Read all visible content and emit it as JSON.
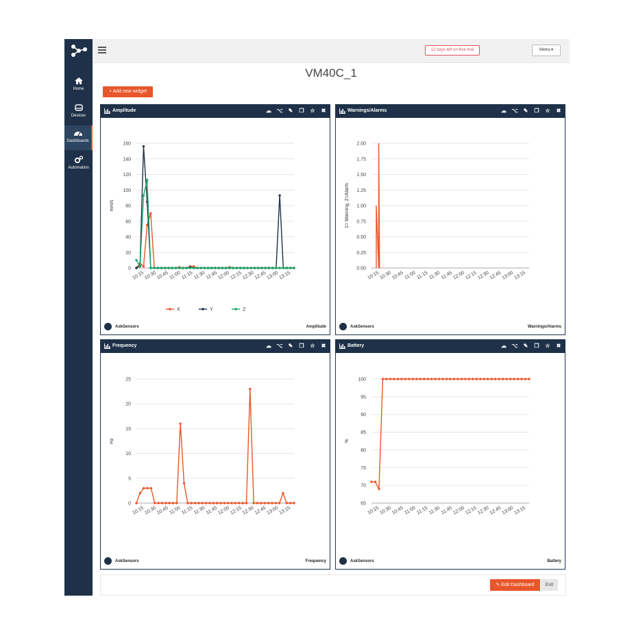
{
  "app": {
    "page_title": "VM40C_1",
    "trial_text": "12 days left on free trial",
    "user_menu": "Metra",
    "add_widget_label": "+ Add new widget",
    "edit_dashboard_label": "Edit Dashboard",
    "exit_label": "Exit",
    "brand": "AskSensors"
  },
  "sidebar": {
    "items": [
      {
        "label": "Home",
        "icon": "home-icon"
      },
      {
        "label": "Devices",
        "icon": "devices-icon"
      },
      {
        "label": "Dashboards",
        "icon": "dashboard-icon"
      },
      {
        "label": "Automation",
        "icon": "gears-icon"
      }
    ]
  },
  "widget_icons": [
    "cloud-download-icon",
    "share-icon",
    "edit-icon",
    "copy-icon",
    "star-icon",
    "close-icon"
  ],
  "widgets": [
    {
      "title": "Amplitude",
      "footer": "Amplitude"
    },
    {
      "title": "Warnings/Alarms",
      "footer": "Warnings/Alarms"
    },
    {
      "title": "Frequency",
      "footer": "Frequency"
    },
    {
      "title": "Battery",
      "footer": "Battery"
    }
  ],
  "colors": {
    "navy": "#1e3148",
    "accent": "#e8562a",
    "x_series": "#e8562a",
    "y_series": "#1e3148",
    "z_series": "#1aa86b"
  },
  "chart_data": [
    {
      "type": "line",
      "title": "",
      "ylabel": "mm/s",
      "xlabel": "",
      "x_ticks": [
        "10:15",
        "10:30",
        "10:45",
        "11:00",
        "11:15",
        "11:30",
        "11:45",
        "12:00",
        "12:15",
        "12:30",
        "12:45",
        "13:00",
        "13:15"
      ],
      "ylim": [
        0,
        160
      ],
      "y_ticks": [
        0,
        20,
        40,
        60,
        80,
        100,
        120,
        140,
        160
      ],
      "legend": "bottom",
      "series": [
        {
          "name": "X",
          "color": "#e8562a",
          "values": [
            0,
            6,
            2,
            55,
            70,
            0,
            0,
            0,
            0,
            0,
            0,
            0,
            1,
            0,
            0,
            2,
            2,
            0,
            0,
            0,
            0,
            0,
            0,
            0,
            0,
            0,
            1,
            0,
            0,
            0,
            0,
            0,
            0,
            0,
            0,
            0,
            0,
            0,
            0,
            0,
            0,
            0,
            0,
            0,
            0
          ]
        },
        {
          "name": "Y",
          "color": "#1e3148",
          "values": [
            0,
            3,
            156,
            85,
            0,
            0,
            0,
            0,
            0,
            0,
            0,
            0,
            0,
            0,
            0,
            1,
            0,
            0,
            0,
            0,
            0,
            0,
            0,
            0,
            0,
            0,
            0,
            0,
            0,
            0,
            0,
            0,
            0,
            0,
            0,
            0,
            0,
            0,
            0,
            0,
            93,
            0,
            0,
            0,
            0
          ]
        },
        {
          "name": "Z",
          "color": "#1aa86b",
          "values": [
            10,
            2,
            93,
            113,
            0,
            0,
            0,
            0,
            0,
            0,
            0,
            0,
            0,
            0,
            0,
            0,
            0,
            0,
            0,
            0,
            0,
            0,
            0,
            0,
            0,
            0,
            0,
            0,
            0,
            0,
            0,
            0,
            0,
            0,
            0,
            0,
            0,
            0,
            0,
            0,
            0,
            0,
            0,
            0,
            0
          ]
        }
      ]
    },
    {
      "type": "line",
      "title": "",
      "ylabel": "1= Warning, 2=Alarm",
      "x_ticks": [
        "10:15",
        "10:30",
        "10:45",
        "11:00",
        "11:15",
        "11:30",
        "11:45",
        "12:00",
        "12:15",
        "12:30",
        "12:45",
        "13:00",
        "13:15"
      ],
      "ylim": [
        0,
        2
      ],
      "y_ticks": [
        "0.00",
        "0.25",
        "0.50",
        "0.75",
        "1.00",
        "1.25",
        "1.50",
        "1.75",
        "2.00"
      ],
      "series": [
        {
          "color": "#e8562a",
          "x": [
            "10:15",
            "10:15",
            "10:18",
            "10:18",
            "10:19"
          ],
          "values": [
            0,
            1,
            0,
            2,
            0
          ]
        }
      ]
    },
    {
      "type": "line",
      "title": "",
      "ylabel": "Hz",
      "x_ticks": [
        "10:15",
        "10:30",
        "10:45",
        "11:00",
        "11:15",
        "11:30",
        "11:45",
        "12:00",
        "12:15",
        "12:30",
        "12:45",
        "13:00",
        "13:15"
      ],
      "ylim": [
        0,
        25
      ],
      "y_ticks": [
        0,
        5,
        10,
        15,
        20,
        25
      ],
      "series": [
        {
          "color": "#e8562a",
          "values": [
            0,
            2,
            3,
            3,
            3,
            0,
            0,
            0,
            0,
            0,
            0,
            0,
            16,
            4,
            0,
            0,
            0,
            0,
            0,
            0,
            0,
            0,
            0,
            0,
            0,
            0,
            0,
            0,
            0,
            0,
            0,
            23,
            0,
            0,
            0,
            0,
            0,
            0,
            0,
            0,
            2,
            0,
            0,
            0
          ]
        }
      ]
    },
    {
      "type": "line",
      "title": "",
      "ylabel": "%",
      "x_ticks": [
        "10:15",
        "10:30",
        "10:45",
        "11:00",
        "11:15",
        "11:30",
        "11:45",
        "12:00",
        "12:15",
        "12:30",
        "12:45",
        "13:00",
        "13:15"
      ],
      "ylim": [
        65,
        100
      ],
      "y_ticks": [
        65,
        70,
        75,
        80,
        85,
        90,
        95,
        100
      ],
      "series": [
        {
          "color": "#e8562a",
          "values": [
            71,
            71,
            69,
            100,
            100,
            100,
            100,
            100,
            100,
            100,
            100,
            100,
            100,
            100,
            100,
            100,
            100,
            100,
            100,
            100,
            100,
            100,
            100,
            100,
            100,
            100,
            100,
            100,
            100,
            100,
            100,
            100,
            100,
            100,
            100,
            100,
            100,
            100,
            100,
            100,
            100,
            100,
            100
          ]
        }
      ]
    }
  ]
}
